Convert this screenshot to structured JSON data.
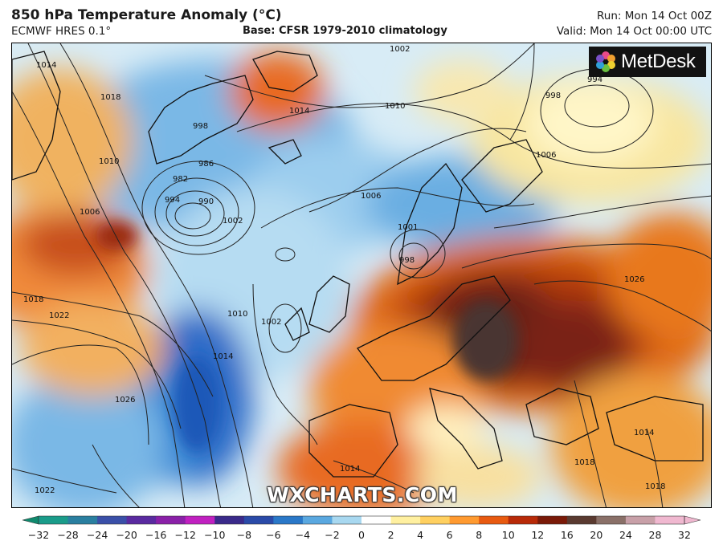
{
  "header": {
    "title": "850 hPa Temperature Anomaly (°C)",
    "subtitle": "ECMWF HRES 0.1°",
    "base": "Base: CFSR 1979-2010 climatology",
    "run": "Run: Mon 14 Oct 00Z",
    "valid": "Valid: Mon 14 Oct 00:00 UTC"
  },
  "logo": {
    "text": "MetDesk",
    "icon": "metdesk-flower-icon"
  },
  "watermark": "WXCHARTS.COM",
  "colorbar": {
    "ticks": [
      "−32",
      "−28",
      "−24",
      "−20",
      "−16",
      "−12",
      "−10",
      "−8",
      "−6",
      "−4",
      "−2",
      "0",
      "2",
      "4",
      "6",
      "8",
      "10",
      "12",
      "16",
      "20",
      "24",
      "28",
      "32"
    ],
    "colors": [
      "#0f8a6e",
      "#1a9c8a",
      "#2a7fa0",
      "#3a4fa8",
      "#5a2aa0",
      "#8a20a8",
      "#c020c0",
      "#3a2a8a",
      "#2a4aa8",
      "#2a78c8",
      "#5aa8e0",
      "#a8d8f0",
      "#ffffff",
      "#fff0a0",
      "#ffd060",
      "#ff9a30",
      "#e85a10",
      "#b82a08",
      "#7a1a08",
      "#5a3a30",
      "#8a7068",
      "#c8a0a8",
      "#f0b8d0"
    ]
  },
  "map": {
    "contours": [
      {
        "label": "1014"
      },
      {
        "label": "1018"
      },
      {
        "label": "1010"
      },
      {
        "label": "998"
      },
      {
        "label": "986"
      },
      {
        "label": "982"
      },
      {
        "label": "990"
      },
      {
        "label": "994"
      },
      {
        "label": "1006"
      },
      {
        "label": "1002"
      },
      {
        "label": "1018"
      },
      {
        "label": "1014"
      },
      {
        "label": "1010"
      },
      {
        "label": "1002"
      },
      {
        "label": "1006"
      },
      {
        "label": "1001"
      },
      {
        "label": "998"
      },
      {
        "label": "1022"
      },
      {
        "label": "1014"
      },
      {
        "label": "1026"
      },
      {
        "label": "1022"
      },
      {
        "label": "1026"
      },
      {
        "label": "1014"
      },
      {
        "label": "1018"
      },
      {
        "label": "1002"
      },
      {
        "label": "994"
      },
      {
        "label": "998"
      },
      {
        "label": "1006"
      },
      {
        "label": "1014"
      },
      {
        "label": "1010"
      },
      {
        "label": "1018"
      }
    ]
  }
}
